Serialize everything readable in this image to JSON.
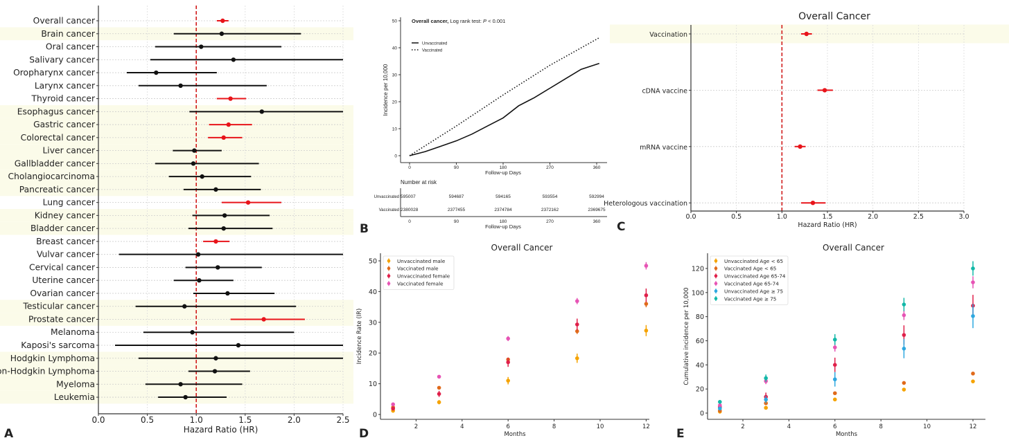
{
  "chart_data": [
    {
      "panel": "A",
      "type": "forest",
      "title": "",
      "xlabel": "Hazard Ratio (HR)",
      "xlim": [
        0,
        2.5
      ],
      "xticks": [
        "0.0",
        "0.5",
        "1.0",
        "1.5",
        "2.0",
        "2.5"
      ],
      "reference_line": 1.0,
      "rows": [
        {
          "label": "Overall cancer",
          "hr": 1.27,
          "lo": 1.21,
          "hi": 1.33,
          "significant": true,
          "band": false
        },
        {
          "label": "Brain cancer",
          "hr": 1.26,
          "lo": 0.77,
          "hi": 2.07,
          "significant": false,
          "band": true
        },
        {
          "label": "Oral cancer",
          "hr": 1.05,
          "lo": 0.58,
          "hi": 1.87,
          "significant": false,
          "band": false
        },
        {
          "label": "Salivary cancer",
          "hr": 1.38,
          "lo": 0.53,
          "hi": 2.5,
          "significant": false,
          "band": false
        },
        {
          "label": "Oropharynx cancer",
          "hr": 0.59,
          "lo": 0.29,
          "hi": 1.21,
          "significant": false,
          "band": false
        },
        {
          "label": "Larynx cancer",
          "hr": 0.84,
          "lo": 0.41,
          "hi": 1.72,
          "significant": false,
          "band": false
        },
        {
          "label": "Thyroid cancer",
          "hr": 1.35,
          "lo": 1.21,
          "hi": 1.51,
          "significant": true,
          "band": false
        },
        {
          "label": "Esophagus cancer",
          "hr": 1.67,
          "lo": 0.93,
          "hi": 2.5,
          "significant": false,
          "band": true
        },
        {
          "label": "Gastric cancer",
          "hr": 1.33,
          "lo": 1.13,
          "hi": 1.57,
          "significant": true,
          "band": true
        },
        {
          "label": "Colorectal cancer",
          "hr": 1.28,
          "lo": 1.12,
          "hi": 1.47,
          "significant": true,
          "band": true
        },
        {
          "label": "Liver cancer",
          "hr": 0.98,
          "lo": 0.76,
          "hi": 1.26,
          "significant": false,
          "band": true
        },
        {
          "label": "Gallbladder cancer",
          "hr": 0.97,
          "lo": 0.58,
          "hi": 1.64,
          "significant": false,
          "band": true
        },
        {
          "label": "Cholangiocarcinoma",
          "hr": 1.06,
          "lo": 0.72,
          "hi": 1.56,
          "significant": false,
          "band": true
        },
        {
          "label": "Pancreatic cancer",
          "hr": 1.2,
          "lo": 0.87,
          "hi": 1.66,
          "significant": false,
          "band": true
        },
        {
          "label": "Lung cancer",
          "hr": 1.53,
          "lo": 1.26,
          "hi": 1.87,
          "significant": true,
          "band": false
        },
        {
          "label": "Kidney cancer",
          "hr": 1.29,
          "lo": 0.96,
          "hi": 1.75,
          "significant": false,
          "band": true
        },
        {
          "label": "Bladder cancer",
          "hr": 1.28,
          "lo": 0.92,
          "hi": 1.78,
          "significant": false,
          "band": true
        },
        {
          "label": "Breast cancer",
          "hr": 1.2,
          "lo": 1.07,
          "hi": 1.34,
          "significant": true,
          "band": false
        },
        {
          "label": "Vulvar cancer",
          "hr": 1.02,
          "lo": 0.21,
          "hi": 2.5,
          "significant": false,
          "band": false
        },
        {
          "label": "Cervical cancer",
          "hr": 1.22,
          "lo": 0.89,
          "hi": 1.67,
          "significant": false,
          "band": false
        },
        {
          "label": "Uterine cancer",
          "hr": 1.03,
          "lo": 0.77,
          "hi": 1.38,
          "significant": false,
          "band": false
        },
        {
          "label": "Ovarian cancer",
          "hr": 1.32,
          "lo": 0.97,
          "hi": 1.8,
          "significant": false,
          "band": false
        },
        {
          "label": "Testicular cancer",
          "hr": 0.88,
          "lo": 0.38,
          "hi": 2.02,
          "significant": false,
          "band": true
        },
        {
          "label": "Prostate cancer",
          "hr": 1.69,
          "lo": 1.35,
          "hi": 2.11,
          "significant": true,
          "band": true
        },
        {
          "label": "Melanoma",
          "hr": 0.96,
          "lo": 0.46,
          "hi": 2.0,
          "significant": false,
          "band": false
        },
        {
          "label": "Kaposi's sarcoma",
          "hr": 1.43,
          "lo": 0.17,
          "hi": 2.5,
          "significant": false,
          "band": false
        },
        {
          "label": "Hodgkin Lymphoma",
          "hr": 1.2,
          "lo": 0.41,
          "hi": 2.5,
          "significant": false,
          "band": true
        },
        {
          "label": "Non-Hodgkin Lymphoma",
          "hr": 1.19,
          "lo": 0.92,
          "hi": 1.55,
          "significant": false,
          "band": true
        },
        {
          "label": "Myeloma",
          "hr": 0.84,
          "lo": 0.48,
          "hi": 1.47,
          "significant": false,
          "band": true
        },
        {
          "label": "Leukemia",
          "hr": 0.89,
          "lo": 0.61,
          "hi": 1.31,
          "significant": false,
          "band": true
        }
      ]
    },
    {
      "panel": "B",
      "type": "line",
      "title_bold": "Overall cancer,",
      "title_rest": " Log rank test: ",
      "title_p": "P",
      "title_pvalue": " < 0.001",
      "xlabel": "Follow-up Days",
      "ylabel": "Incidence per 10,000",
      "xlim": [
        0,
        365
      ],
      "ylim": [
        0,
        50
      ],
      "xticks": [
        "0",
        "90",
        "180",
        "270",
        "360"
      ],
      "yticks": [
        "0",
        "10",
        "20",
        "30",
        "40",
        "50"
      ],
      "series": [
        {
          "name": "Unvaccinated",
          "style": "solid",
          "x": [
            0,
            30,
            60,
            90,
            120,
            150,
            180,
            210,
            240,
            270,
            300,
            330,
            365
          ],
          "y": [
            0,
            1.5,
            3.5,
            5.5,
            8,
            11,
            14,
            18.5,
            21.5,
            25,
            28.5,
            32,
            34.2
          ]
        },
        {
          "name": "Vaccinated",
          "style": "dotted",
          "x": [
            0,
            90,
            180,
            270,
            365
          ],
          "y": [
            0,
            11,
            22.5,
            33.5,
            43.7
          ]
        }
      ],
      "risk_table": {
        "title": "Number at risk",
        "rows": [
          {
            "label": "Unvaccinated",
            "values": [
              "595007",
              "594687",
              "594165",
              "593554",
              "592994"
            ]
          },
          {
            "label": "Vaccinated",
            "values": [
              "2380028",
              "2377455",
              "2374784",
              "2372162",
              "2369675"
            ]
          }
        ],
        "xticks": [
          "0",
          "90",
          "180",
          "270",
          "360"
        ],
        "xlabel": "Follow-up Days"
      }
    },
    {
      "panel": "C",
      "type": "forest",
      "title": "Overall Cancer",
      "xlabel": "Hazard Ratio (HR)",
      "xlim": [
        0,
        3.0
      ],
      "xticks": [
        "0.0",
        "0.5",
        "1.0",
        "1.5",
        "2.0",
        "2.5",
        "3.0"
      ],
      "reference_line": 1.0,
      "rows": [
        {
          "label": "Vaccination",
          "hr": 1.27,
          "lo": 1.21,
          "hi": 1.33,
          "significant": true,
          "band": true
        },
        {
          "label": "cDNA vaccine",
          "hr": 1.47,
          "lo": 1.39,
          "hi": 1.56,
          "significant": true,
          "band": false
        },
        {
          "label": "mRNA vaccine",
          "hr": 1.2,
          "lo": 1.14,
          "hi": 1.26,
          "significant": true,
          "band": false
        },
        {
          "label": "Heterologous vaccination",
          "hr": 1.34,
          "lo": 1.21,
          "hi": 1.48,
          "significant": true,
          "band": false
        }
      ]
    },
    {
      "panel": "D",
      "type": "scatter",
      "title": "Overall Cancer",
      "xlabel": "Months",
      "ylabel": "Incidence Rate (IR)",
      "xlim": [
        0.5,
        12.1
      ],
      "ylim": [
        -1.5,
        52
      ],
      "xticks": [
        "2",
        "4",
        "6",
        "8",
        "10",
        "12"
      ],
      "yticks": [
        "0",
        "10",
        "20",
        "30",
        "40",
        "50"
      ],
      "legend_position": "top-left",
      "x": [
        1,
        3,
        6,
        9,
        12
      ],
      "series": [
        {
          "name": "Unvaccinated male",
          "color": "#f5a300",
          "y": [
            1.2,
            4.0,
            11.0,
            18.3,
            27.3
          ],
          "err": [
            0.4,
            0.7,
            1.2,
            1.5,
            1.8
          ]
        },
        {
          "name": "Vaccinated male",
          "color": "#e06a1b",
          "y": [
            2.3,
            8.7,
            17.9,
            27.1,
            36.0
          ],
          "err": [
            0.3,
            0.4,
            0.6,
            0.9,
            1.1
          ]
        },
        {
          "name": "Unvaccinated female",
          "color": "#e0204a",
          "y": [
            1.9,
            6.7,
            17.0,
            29.3,
            38.8
          ],
          "err": [
            0.5,
            1.0,
            1.5,
            1.9,
            2.2
          ]
        },
        {
          "name": "Vaccinated female",
          "color": "#e754b5",
          "y": [
            3.3,
            12.3,
            24.7,
            36.9,
            48.4
          ],
          "err": [
            0.3,
            0.5,
            0.8,
            1.0,
            1.2
          ]
        }
      ]
    },
    {
      "panel": "E",
      "type": "scatter",
      "title": "Overall Cancer",
      "xlabel": "Months",
      "ylabel": "Cumulative incidence per 10,000",
      "xlim": [
        0.5,
        13.1
      ],
      "ylim": [
        -5,
        132
      ],
      "xticks": [
        "2",
        "4",
        "6",
        "8",
        "10",
        "12"
      ],
      "yticks": [
        "0",
        "20",
        "40",
        "60",
        "80",
        "100",
        "120"
      ],
      "legend_position": "top-left",
      "x": [
        1,
        3,
        6,
        9,
        12
      ],
      "series": [
        {
          "name": "Unvaccinated Age < 65",
          "color": "#f5a300",
          "y": [
            1.2,
            4.4,
            11.3,
            19.5,
            26.3
          ],
          "err": [
            0.3,
            0.5,
            0.8,
            1.0,
            1.2
          ]
        },
        {
          "name": "Vaccinated Age < 65",
          "color": "#e06a1b",
          "y": [
            2.0,
            8.2,
            16.5,
            25.0,
            32.8
          ],
          "err": [
            0.3,
            0.5,
            0.7,
            0.9,
            1.0
          ]
        },
        {
          "name": "Unvaccinated Age 65-74",
          "color": "#e0204a",
          "y": [
            5.0,
            13.5,
            40.0,
            64.8,
            89.1
          ],
          "err": [
            1.0,
            3.5,
            6.0,
            8.0,
            9.0
          ]
        },
        {
          "name": "Vaccinated Age 65-74",
          "color": "#e754b5",
          "y": [
            6.5,
            26.5,
            54.5,
            81.2,
            108.5
          ],
          "err": [
            1.0,
            2.5,
            3.5,
            4.0,
            5.0
          ]
        },
        {
          "name": "Unvaccinated Age ≥ 75",
          "color": "#2ea8e0",
          "y": [
            3.8,
            11.2,
            28.0,
            53.5,
            80.5
          ],
          "err": [
            1.5,
            3.0,
            6.0,
            8.0,
            10.0
          ]
        },
        {
          "name": "Vaccinated Age ≥ 75",
          "color": "#12b8a8",
          "y": [
            9.3,
            29.0,
            61.0,
            90.1,
            120.0
          ],
          "err": [
            1.5,
            3.0,
            4.5,
            5.5,
            6.0
          ]
        }
      ]
    }
  ],
  "panel_letters": [
    "A",
    "B",
    "C",
    "D",
    "E"
  ],
  "colors": {
    "significant": "#e8141a",
    "nonsignificant": "#111111",
    "reference": "#d11a1a",
    "band": "#fbfbe9"
  }
}
